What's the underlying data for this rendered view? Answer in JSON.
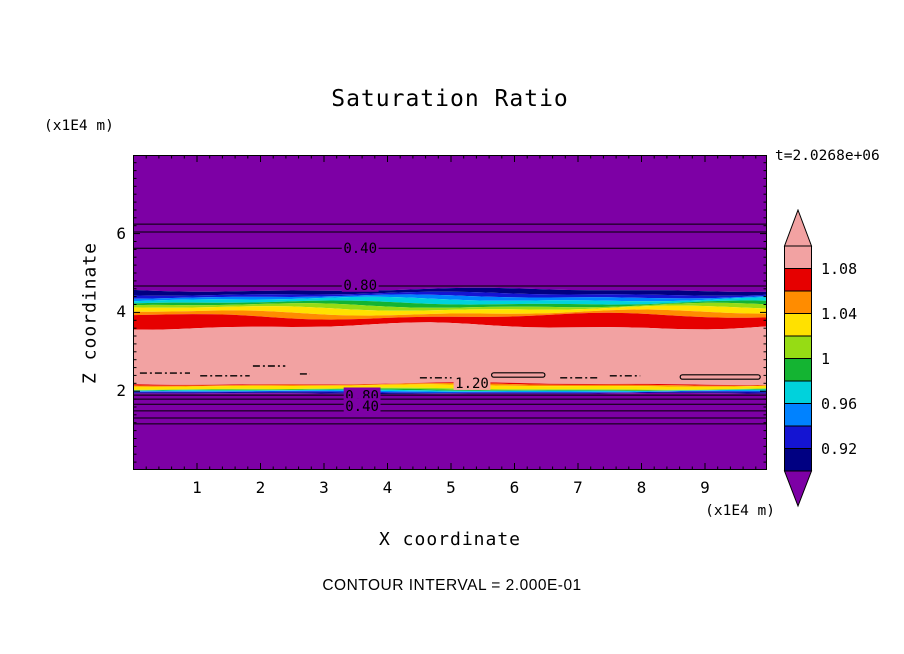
{
  "page": {
    "title": "Saturation Ratio",
    "time_label": "t=2.0268e+06",
    "footer": "CONTOUR INTERVAL = 2.000E-01"
  },
  "axes": {
    "x": {
      "label": "X coordinate",
      "unit": "(x1E4 m)",
      "ticks": [
        "1",
        "2",
        "3",
        "4",
        "5",
        "6",
        "7",
        "8",
        "9"
      ]
    },
    "y": {
      "label": "Z coordinate",
      "unit": "(x1E4 m)",
      "ticks": [
        "2",
        "4",
        "6"
      ]
    }
  },
  "colorbar": {
    "labels": [
      "1.08",
      "1.04",
      "1",
      "0.96",
      "0.92"
    ],
    "segment_colors": [
      "#F2A2A2",
      "#E60000",
      "#FF8C00",
      "#FFE100",
      "#96DC14",
      "#14B432",
      "#00D2DC",
      "#0082FF",
      "#1414D2",
      "#000082"
    ],
    "arrow_top_color": "#F2A2A2",
    "arrow_bottom_color": "#7D00A5"
  },
  "chart_data": {
    "type": "heatmap",
    "title": "Saturation Ratio",
    "xlabel": "X coordinate (x1E4 m)",
    "ylabel": "Z coordinate (x1E4 m)",
    "x_range": [
      0,
      10
    ],
    "y_range": [
      0,
      8
    ],
    "x_ticks": [
      1,
      2,
      3,
      4,
      5,
      6,
      7,
      8,
      9
    ],
    "y_ticks": [
      2,
      4,
      6
    ],
    "contour_interval": 0.2,
    "time": "t=2.0268e+06",
    "colorbar_levels": [
      1.08,
      1.04,
      1.0,
      0.96,
      0.92
    ],
    "boundaries": [
      {
        "v": 8.0,
        "a": 0,
        "p": 0
      },
      {
        "v": 4.57,
        "a": 1.5,
        "p": 0
      },
      {
        "v": 4.47,
        "a": 1.5,
        "p": 0.6
      },
      {
        "v": 4.4,
        "a": 1.5,
        "p": 1.2
      },
      {
        "v": 4.33,
        "a": 1.8,
        "p": 1.8
      },
      {
        "v": 4.24,
        "a": 1.8,
        "p": 2.4
      },
      {
        "v": 4.17,
        "a": 2.0,
        "p": 3.0
      },
      {
        "v": 4.1,
        "a": 2.0,
        "p": 3.6
      },
      {
        "v": 3.99,
        "a": 2.2,
        "p": 4.2
      },
      {
        "v": 3.9,
        "a": 2.4,
        "p": 4.8
      },
      {
        "v": 3.65,
        "a": 2.6,
        "p": 0.9
      },
      {
        "v": 2.19,
        "a": 1.0,
        "p": 0.2
      },
      {
        "v": 2.17,
        "a": 1.0,
        "p": 0.5
      },
      {
        "v": 2.14,
        "a": 0.9,
        "p": 0.9
      },
      {
        "v": 2.06,
        "a": 0.8,
        "p": 1.3
      },
      {
        "v": 2.04,
        "a": 0.7,
        "p": 1.7
      },
      {
        "v": 2.02,
        "a": 0.6,
        "p": 2.1
      },
      {
        "v": 2.0,
        "a": 0.5,
        "p": 2.5
      },
      {
        "v": 1.98,
        "a": 0.5,
        "p": 2.9
      },
      {
        "v": 1.96,
        "a": 0.4,
        "p": 3.3
      },
      {
        "v": 1.94,
        "a": 0.4,
        "p": 3.7
      },
      {
        "v": 0.0,
        "a": 0,
        "p": 0
      }
    ],
    "band_colors": [
      "#7D00A5",
      "#000082",
      "#1414D2",
      "#0082FF",
      "#00D2DC",
      "#14B432",
      "#96DC14",
      "#FFE100",
      "#FF8C00",
      "#E60000",
      "#F2A2A2",
      "#E60000",
      "#FF8C00",
      "#FFE100",
      "#96DC14",
      "#14B432",
      "#00D2DC",
      "#0082FF",
      "#1414D2",
      "#000082",
      "#7D00A5"
    ],
    "contour_line_y": [
      6.24,
      6.04,
      5.63,
      4.67,
      1.9,
      1.8,
      1.67,
      1.5,
      1.32,
      1.17
    ],
    "contour_labels": [
      {
        "text": "0.40",
        "x": 3.57,
        "y": 5.63,
        "bg": "#7D00A5"
      },
      {
        "text": "0.80",
        "x": 3.57,
        "y": 4.7,
        "bg": "#7D00A5"
      },
      {
        "text": "1.20",
        "x": 5.33,
        "y": 2.21,
        "bg": "#F2A2A2"
      },
      {
        "text": "0.80",
        "x": 3.6,
        "y": 1.89,
        "bg": "#7D00A5"
      },
      {
        "text": "0.40",
        "x": 3.6,
        "y": 1.62,
        "bg": "#7D00A5"
      }
    ],
    "dash_segments": [
      [
        0.1,
        0.89,
        2.46,
        "dash"
      ],
      [
        1.05,
        1.83,
        2.39,
        "dash"
      ],
      [
        1.88,
        2.39,
        2.64,
        "dash"
      ],
      [
        2.62,
        2.78,
        2.44,
        "dash"
      ],
      [
        4.51,
        5.01,
        2.34,
        "dash"
      ],
      [
        5.64,
        6.48,
        2.41,
        "loop"
      ],
      [
        6.72,
        7.35,
        2.34,
        "dash"
      ],
      [
        7.5,
        7.98,
        2.39,
        "dash"
      ],
      [
        8.61,
        9.87,
        2.36,
        "loop"
      ]
    ]
  }
}
